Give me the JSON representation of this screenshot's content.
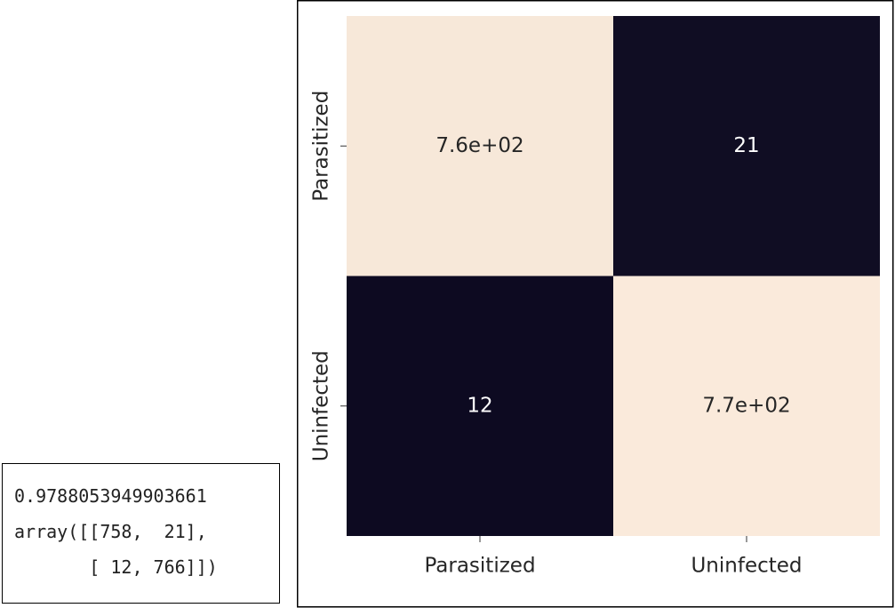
{
  "chart_data": {
    "type": "heatmap",
    "rows": [
      "Parasitized",
      "Uninfected"
    ],
    "columns": [
      "Parasitized",
      "Uninfected"
    ],
    "values": [
      [
        758,
        21
      ],
      [
        12,
        766
      ]
    ],
    "value_labels": [
      [
        "7.6e+02",
        "21"
      ],
      [
        "12",
        "7.7e+02"
      ]
    ],
    "colormap": [
      "#0d0a21",
      "#faeadb"
    ]
  },
  "output": {
    "lines": [
      "0.9788053949903661",
      "array([[758,  21],",
      "       [ 12, 766]])"
    ]
  }
}
